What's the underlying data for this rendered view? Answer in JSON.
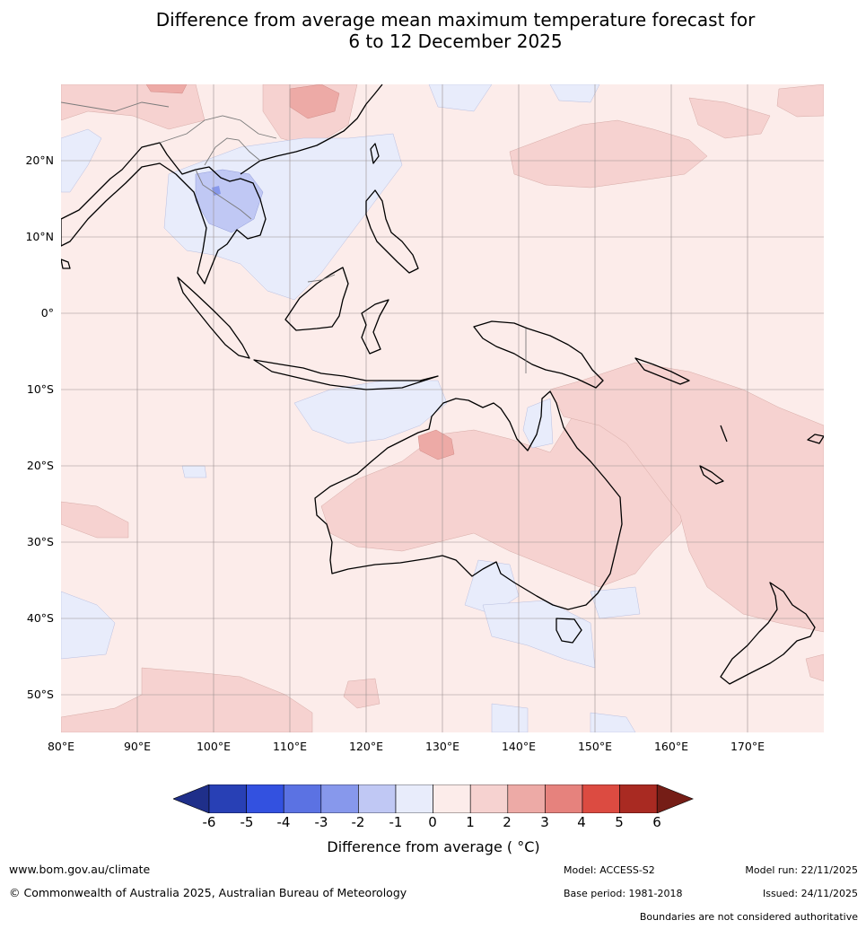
{
  "title_line1": "Difference from average mean maximum temperature forecast for",
  "title_line2": "6 to 12 December 2025",
  "y_axis_labels": [
    "20°N",
    "10°N",
    "0°",
    "10°S",
    "20°S",
    "30°S",
    "40°S",
    "50°S"
  ],
  "x_axis_labels": [
    "80°E",
    "90°E",
    "100°E",
    "110°E",
    "120°E",
    "130°E",
    "140°E",
    "150°E",
    "160°E",
    "170°E"
  ],
  "colorbar": {
    "ticks": [
      "-6",
      "-5",
      "-4",
      "-3",
      "-2",
      "-1",
      "0",
      "1",
      "2",
      "3",
      "4",
      "5",
      "6"
    ],
    "colors": [
      "#1f2f8a",
      "#2840b5",
      "#3351e0",
      "#5b72e3",
      "#8798ec",
      "#c0c8f4",
      "#e8ecfb",
      "#fcecea",
      "#f6d2d0",
      "#edaaa6",
      "#e6827d",
      "#dc4b41",
      "#a92a22",
      "#751d16"
    ],
    "label": "Difference from average ( °C)"
  },
  "footer": {
    "website": "www.bom.gov.au/climate",
    "copyright": "© Commonwealth of Australia 2025, Australian Bureau of Meteorology",
    "model": "Model: ACCESS-S2",
    "base_period": "Base period: 1981-2018",
    "model_run": "Model run: 22/11/2025",
    "issued": "Issued: 24/11/2025",
    "disclaimer": "Boundaries are not considered authoritative"
  }
}
